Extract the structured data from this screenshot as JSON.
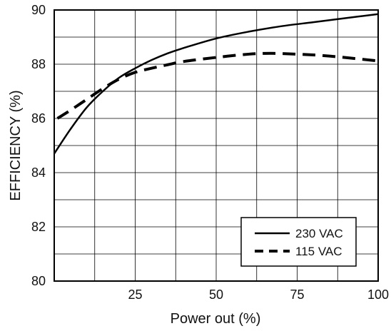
{
  "chart_data": {
    "type": "line",
    "xlabel": "Power out (%)",
    "ylabel": "EFFICIENCY (%)",
    "xlim": [
      0,
      100
    ],
    "ylim": [
      80,
      90
    ],
    "x_ticks": [
      25,
      50,
      75,
      100
    ],
    "y_ticks": [
      80,
      82,
      84,
      86,
      88,
      90
    ],
    "x_tick_labels": [
      "25",
      "50",
      "75",
      "100"
    ],
    "y_tick_labels": [
      "80",
      "82",
      "84",
      "86",
      "88",
      "90"
    ],
    "grid": true,
    "legend_position": "bottom-right",
    "series": [
      {
        "name": "230 VAC",
        "style": "solid",
        "color": "#000000",
        "x": [
          0,
          5,
          10,
          15,
          20,
          25,
          30,
          35,
          40,
          50,
          60,
          70,
          80,
          90,
          100
        ],
        "y": [
          84.7,
          85.6,
          86.4,
          87.0,
          87.5,
          87.85,
          88.15,
          88.4,
          88.6,
          88.95,
          89.2,
          89.4,
          89.55,
          89.7,
          89.85
        ]
      },
      {
        "name": "115 VAC",
        "style": "dashed",
        "color": "#000000",
        "x": [
          1,
          5,
          10,
          15,
          20,
          25,
          30,
          35,
          40,
          50,
          60,
          67,
          75,
          85,
          100
        ],
        "y": [
          86.0,
          86.3,
          86.7,
          87.1,
          87.45,
          87.7,
          87.85,
          87.98,
          88.1,
          88.25,
          88.37,
          88.4,
          88.37,
          88.3,
          88.12
        ]
      }
    ]
  }
}
